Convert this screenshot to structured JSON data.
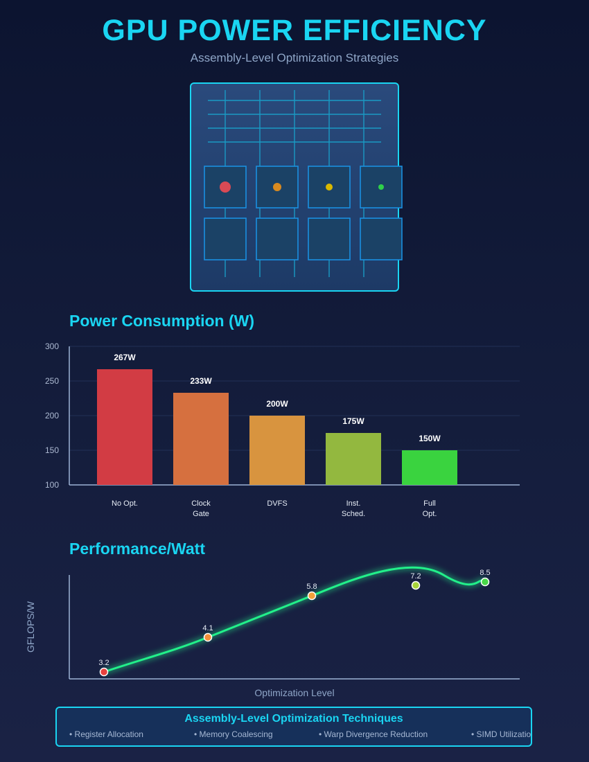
{
  "header": {
    "title": "GPU POWER EFFICIENCY",
    "subtitle": "Assembly-Level Optimization Strategies"
  },
  "colors": {
    "accent": "#1ad5f2",
    "curve": "#22f08a",
    "status_red": "#d94a55",
    "status_orange": "#d98a20",
    "status_yellow": "#d9b800",
    "status_green": "#2fd04a"
  },
  "chart_data": [
    {
      "type": "bar",
      "title": "Power Consumption (W)",
      "categories": [
        "No Opt.",
        "Clock\nGate",
        "DVFS",
        "Inst.\nSched.",
        "Full\nOpt."
      ],
      "values": [
        267,
        233,
        200,
        175,
        150
      ],
      "value_labels": [
        "267W",
        "233W",
        "200W",
        "175W",
        "150W"
      ],
      "bar_colors": [
        "#d23c44",
        "#d6703f",
        "#d8943f",
        "#93b83f",
        "#3ad33f"
      ],
      "yticks": [
        300,
        250,
        200,
        150,
        100
      ],
      "ylim": [
        100,
        300
      ],
      "grid": true
    },
    {
      "type": "line",
      "title": "Performance/Watt",
      "x": [
        1,
        2,
        3,
        4,
        5
      ],
      "values": [
        3.2,
        4.1,
        5.8,
        7.2,
        8.5
      ],
      "point_labels": [
        "3.2",
        "4.1",
        "5.8",
        "7.2",
        "8.5"
      ],
      "point_colors": [
        "#e8423e",
        "#f2903a",
        "#f2a03a",
        "#a8d43a",
        "#48d848"
      ],
      "xlabel": "Optimization Level",
      "ylabel": "GFLOPS/W"
    }
  ],
  "techniques": {
    "title": "Assembly-Level Optimization Techniques",
    "items": [
      "• Register Allocation",
      "• Memory Coalescing",
      "• Warp Divergence Reduction",
      "• SIMD Utilization"
    ]
  }
}
